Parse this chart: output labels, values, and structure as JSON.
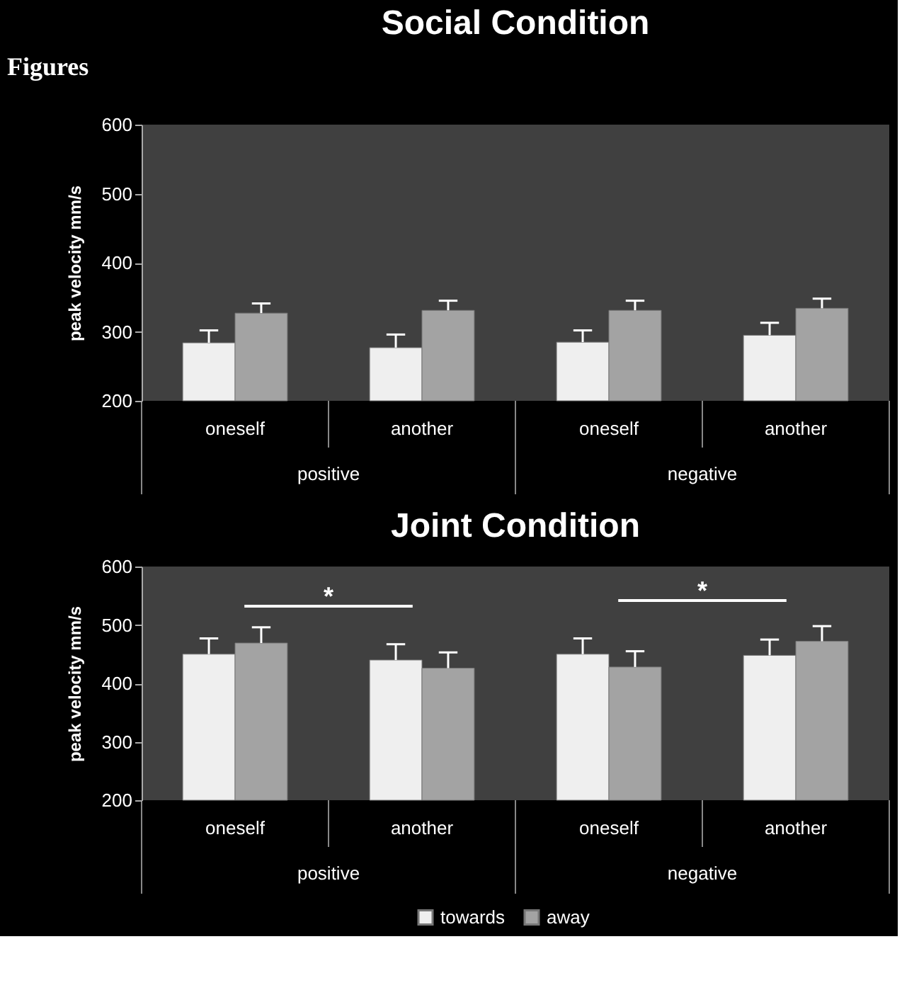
{
  "chart_data": [
    {
      "type": "bar",
      "title": "Social Condition",
      "ylabel": "peak velocity mm/s",
      "categories": [
        "oneself",
        "another",
        "oneself",
        "another"
      ],
      "series": [
        {
          "color": "#efefef",
          "values": [
            284,
            277,
            285,
            295
          ],
          "errors": [
            18,
            19,
            17,
            18
          ]
        },
        {
          "color": "#a3a3a3",
          "values": [
            327,
            331,
            331,
            334
          ],
          "errors": [
            14,
            14,
            14,
            14
          ]
        }
      ],
      "ylim": [
        200,
        600
      ],
      "yticks": [
        200,
        300,
        400,
        500,
        600
      ],
      "grid": false,
      "legend": false,
      "annotations": [
        "Figures",
        "positive",
        "negative"
      ]
    },
    {
      "type": "bar",
      "title": "Joint Condition",
      "ylabel": "peak velocity mm/s",
      "categories": [
        "oneself",
        "another",
        "oneself",
        "another"
      ],
      "series": [
        {
          "name": "towards",
          "color": "#efefef",
          "values": [
            450,
            440,
            450,
            448
          ],
          "errors": [
            27,
            27,
            27,
            27
          ]
        },
        {
          "name": "away",
          "color": "#a3a3a3",
          "values": [
            469,
            426,
            428,
            472
          ],
          "errors": [
            27,
            27,
            27,
            26
          ]
        }
      ],
      "ylim": [
        200,
        600
      ],
      "yticks": [
        200,
        300,
        400,
        500,
        600
      ],
      "grid": false,
      "legend": "bottom",
      "annotations": [
        "*",
        "*",
        "positive",
        "negative"
      ]
    }
  ]
}
